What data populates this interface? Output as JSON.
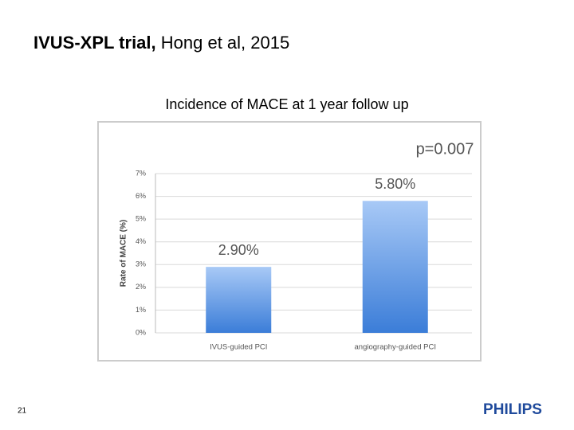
{
  "slide": {
    "title_bold": "IVUS-XPL trial,",
    "title_rest": "Hong et al, 2015",
    "page_number": "21",
    "logo": "PHILIPS"
  },
  "chart_data": {
    "type": "bar",
    "title": "Incidence of MACE at 1 year follow up",
    "annotation": "p=0.007",
    "ylabel": "Rate of MACE (%)",
    "categories": [
      "IVUS-guided PCI",
      "angiography-guided PCI"
    ],
    "values": [
      2.9,
      5.8
    ],
    "value_labels": [
      "2.90%",
      "5.80%"
    ],
    "ylim": [
      0,
      7
    ],
    "yticks": [
      {
        "value": 0,
        "label": "0%"
      },
      {
        "value": 1,
        "label": "1%"
      },
      {
        "value": 2,
        "label": "2%"
      },
      {
        "value": 3,
        "label": "3%"
      },
      {
        "value": 4,
        "label": "4%"
      },
      {
        "value": 5,
        "label": "5%"
      },
      {
        "value": 6,
        "label": "6%"
      },
      {
        "value": 7,
        "label": "7%"
      }
    ],
    "grid": true,
    "color": "#4a88de"
  }
}
